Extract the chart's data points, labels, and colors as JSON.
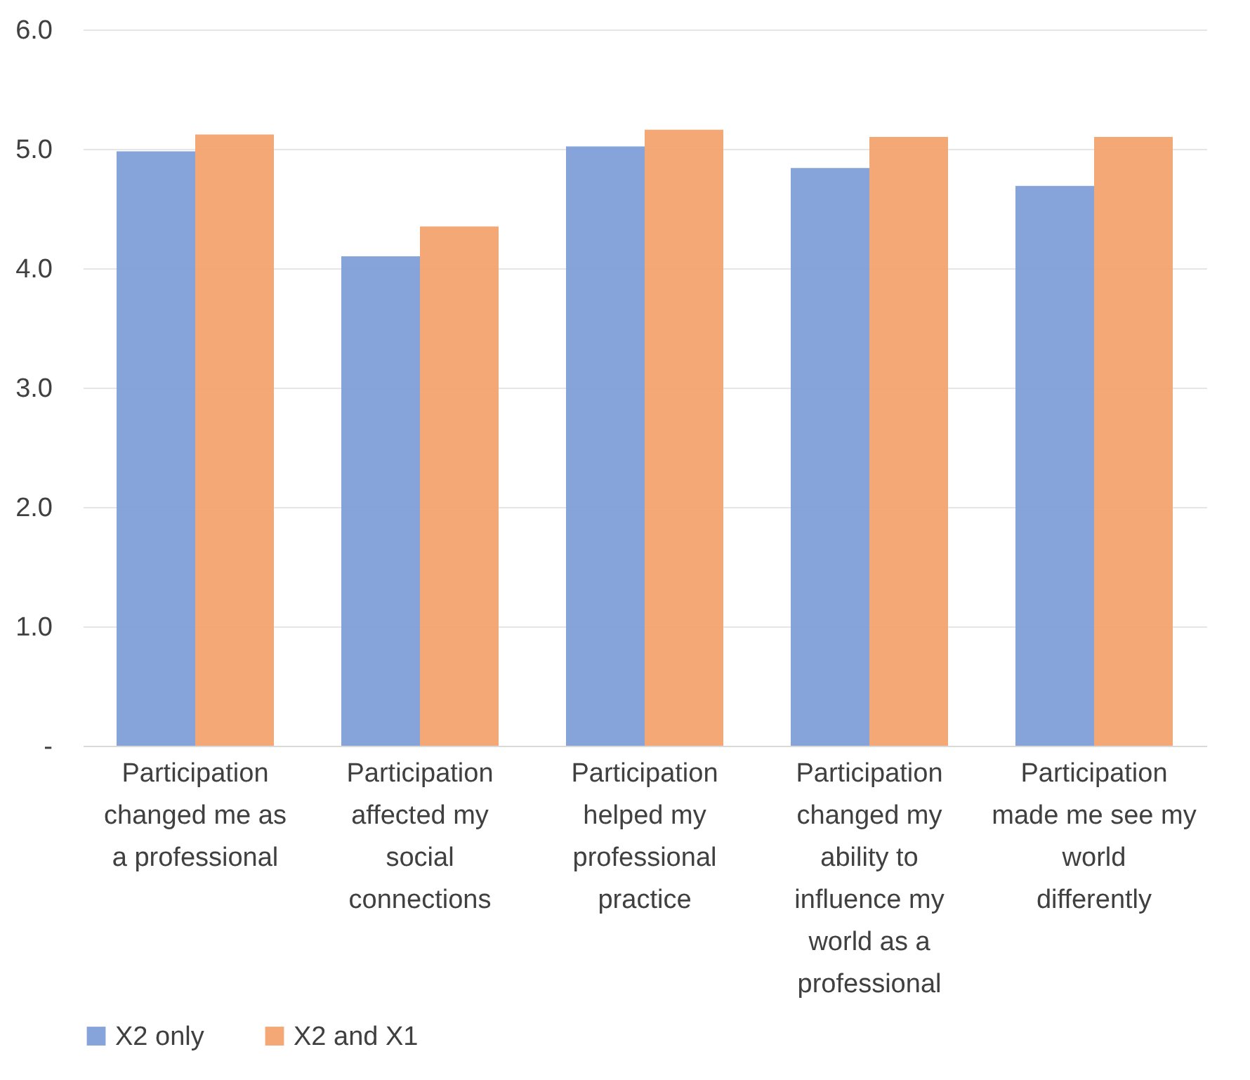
{
  "chart_data": {
    "type": "bar",
    "categories": [
      "Participation changed me as a professional",
      "Participation affected my social connections",
      "Participation helped my professional practice",
      "Participation changed my ability to influence my world as a professional",
      "Participation made me see my world differently"
    ],
    "series": [
      {
        "name": "X2 only",
        "color": "#7f9fd8",
        "values": [
          4.98,
          4.1,
          5.02,
          4.84,
          4.69
        ]
      },
      {
        "name": "X2 and X1",
        "color": "#f2a36e",
        "values": [
          5.12,
          4.35,
          5.16,
          5.1,
          5.1
        ]
      }
    ],
    "ylim": [
      0,
      6
    ],
    "yticks": [
      {
        "value": 0,
        "label": "-"
      },
      {
        "value": 1,
        "label": "1.0"
      },
      {
        "value": 2,
        "label": "2.0"
      },
      {
        "value": 3,
        "label": "3.0"
      },
      {
        "value": 4,
        "label": "4.0"
      },
      {
        "value": 5,
        "label": "5.0"
      },
      {
        "value": 6,
        "label": "6.0"
      }
    ],
    "grid": "y",
    "legend": "bottom"
  }
}
